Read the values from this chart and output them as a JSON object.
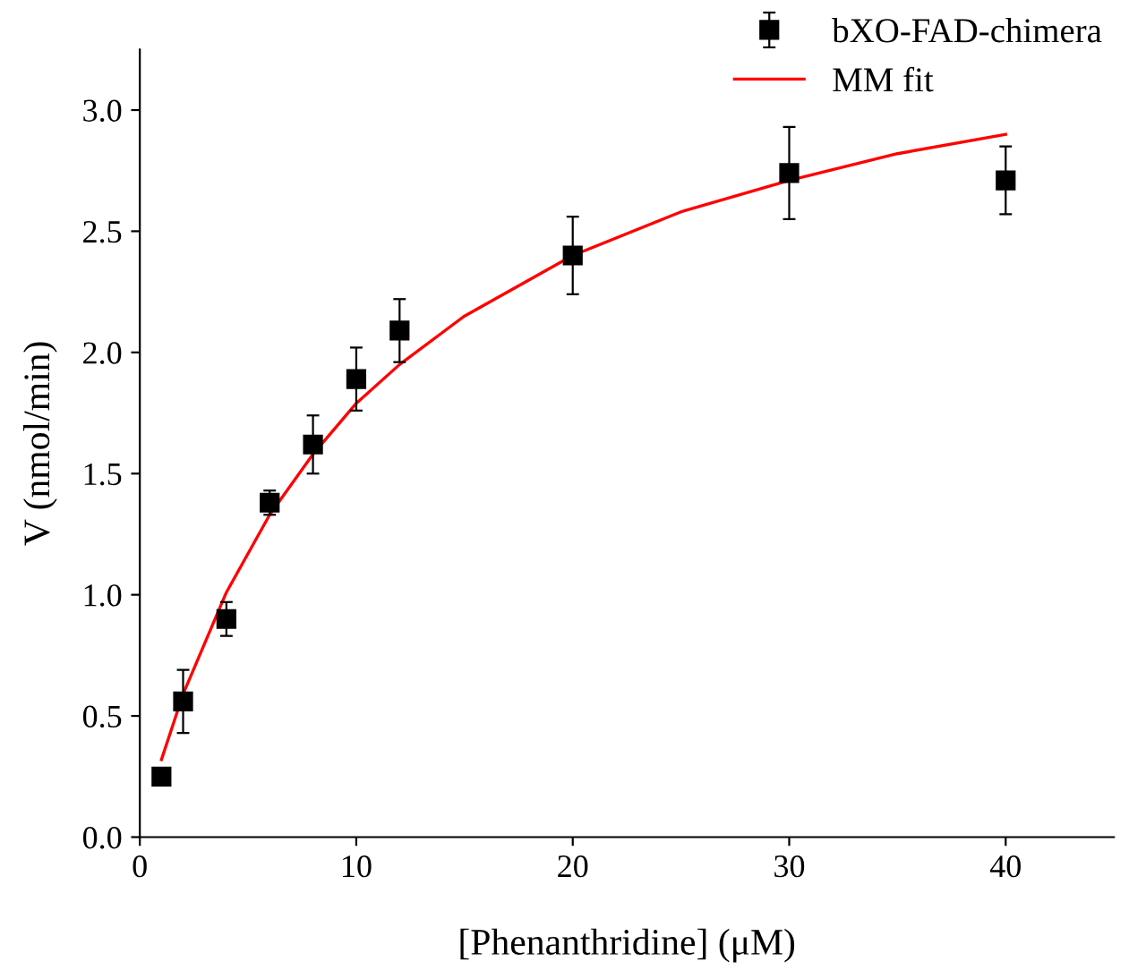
{
  "chart_data": {
    "type": "scatter",
    "xlabel": "[Phenanthridine] (μM)",
    "ylabel": "V (nmol/min)",
    "xlim": [
      0,
      45
    ],
    "xticks": [
      0,
      10,
      20,
      30,
      40
    ],
    "ylim": [
      0,
      3.25
    ],
    "yticks": [
      {
        "value": 0,
        "label": "0.0"
      },
      {
        "value": 0.5,
        "label": "0.5"
      },
      {
        "value": 1,
        "label": "1.0"
      },
      {
        "value": 1.5,
        "label": "1.5"
      },
      {
        "value": 2,
        "label": "2.0"
      },
      {
        "value": 2.5,
        "label": "2.5"
      },
      {
        "value": 3,
        "label": "3.0"
      }
    ],
    "legend": "top right",
    "grid": false,
    "series": [
      {
        "name": "bXO-FAD-chimera",
        "marker": "square",
        "color": "#000000",
        "x": [
          1,
          2,
          4,
          6,
          8,
          10,
          12,
          20,
          30,
          40
        ],
        "values": [
          0.25,
          0.56,
          0.9,
          1.38,
          1.62,
          1.89,
          2.09,
          2.4,
          2.74,
          2.71
        ],
        "errors": [
          null,
          0.13,
          0.07,
          0.05,
          0.12,
          0.13,
          0.13,
          0.16,
          0.19,
          0.14
        ]
      },
      {
        "name": "MM fit",
        "type": "line",
        "color": "#ff0000",
        "line_style": "solid",
        "x": [
          1,
          2,
          4,
          6,
          8,
          10,
          12,
          15,
          20,
          25,
          30,
          35,
          40
        ],
        "values": [
          0.32,
          0.59,
          1.01,
          1.33,
          1.58,
          1.79,
          1.95,
          2.15,
          2.4,
          2.58,
          2.71,
          2.82,
          2.9
        ]
      }
    ]
  }
}
